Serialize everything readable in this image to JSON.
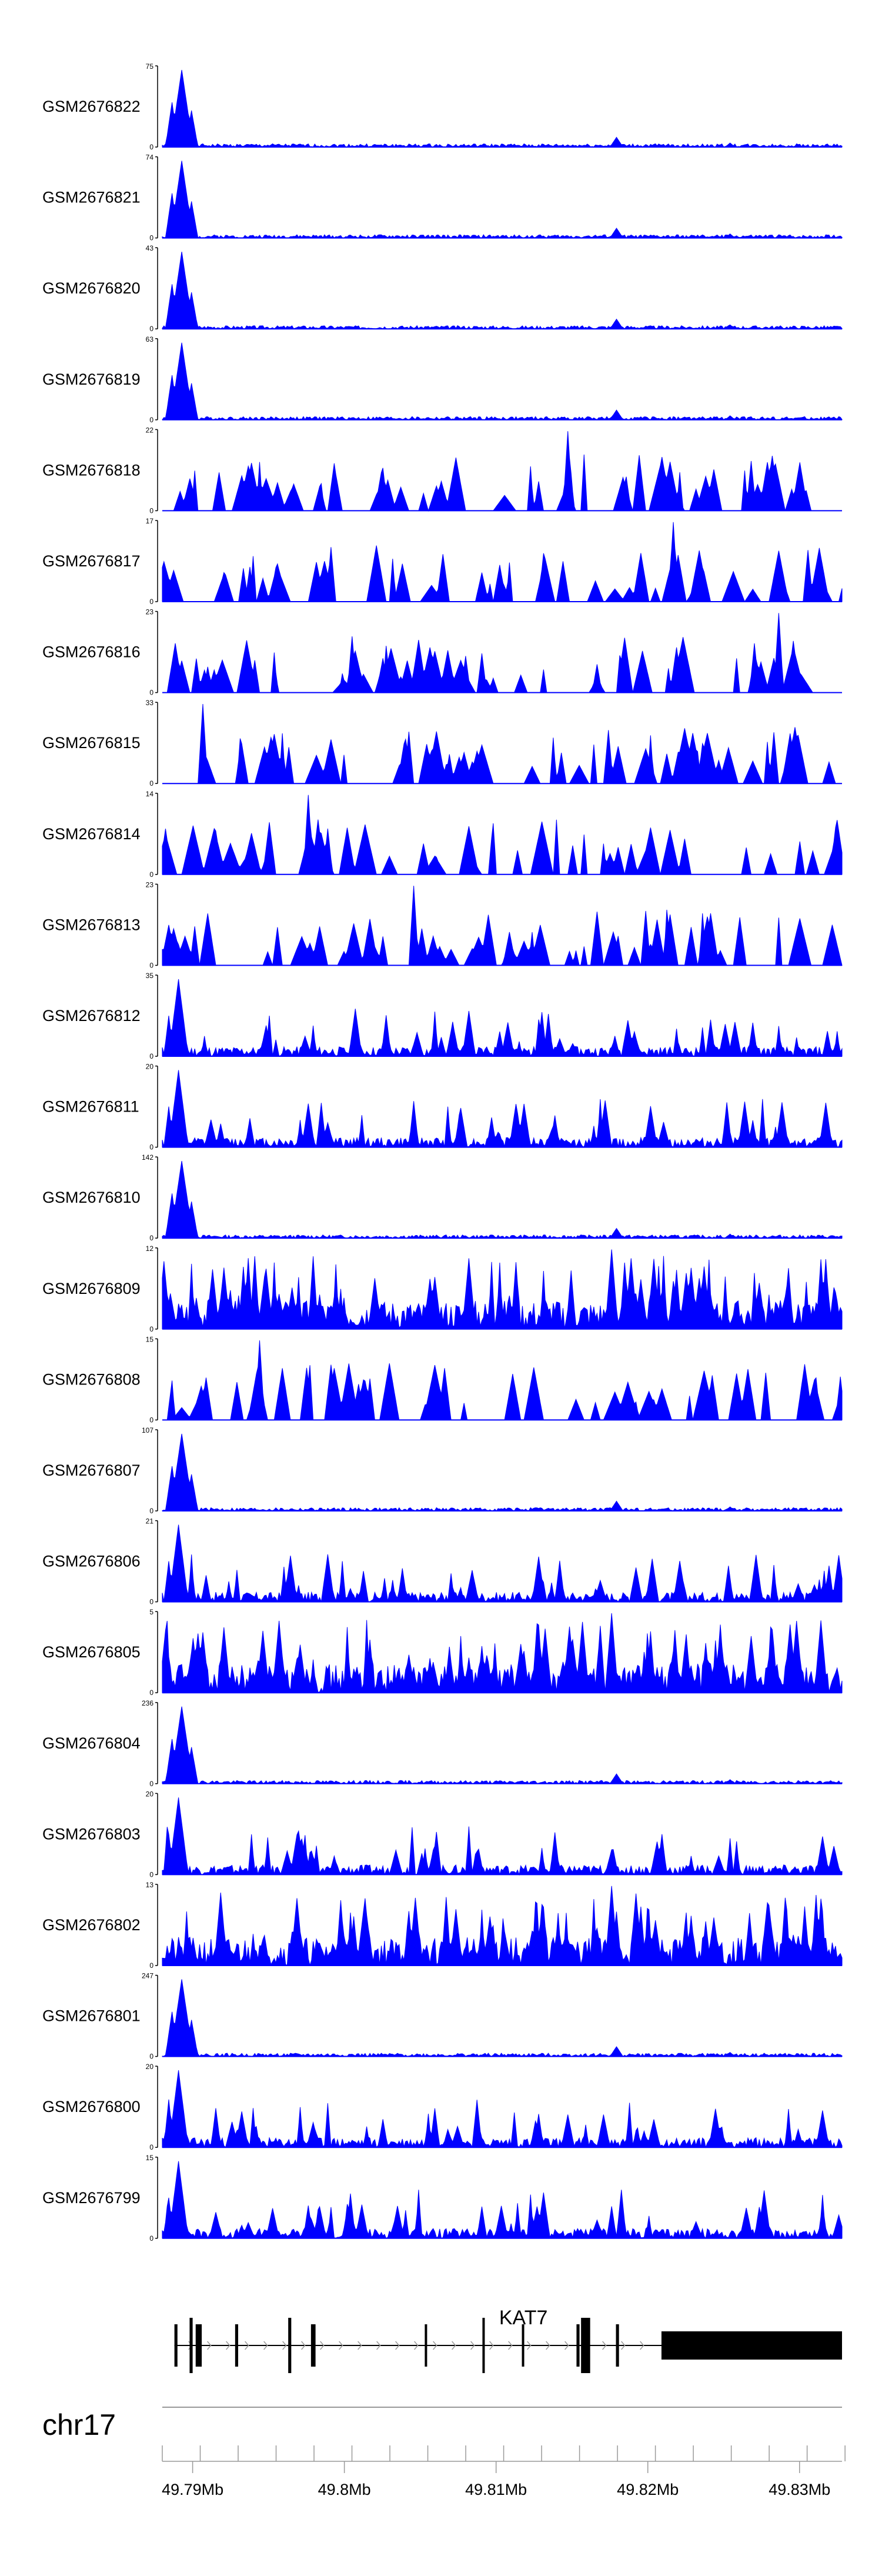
{
  "chart_data": {
    "type": "area",
    "color": "#0000ff",
    "x_range_mb": [
      49.788,
      49.8328
    ],
    "chromosome": "chr17",
    "axis_ticks_mb": [
      49.79,
      49.8,
      49.81,
      49.82,
      49.83
    ],
    "axis_tick_labels": [
      "49.79Mb",
      "49.8Mb",
      "49.81Mb",
      "49.82Mb",
      "49.83Mb"
    ],
    "gene": {
      "name": "KAT7",
      "start_mb": 49.7888,
      "end_mb": 49.8328,
      "exons_mb": [
        [
          49.7888,
          49.789
        ],
        [
          49.7898,
          49.79
        ],
        [
          49.7902,
          49.7906
        ],
        [
          49.7928,
          49.793
        ],
        [
          49.7963,
          49.7965
        ],
        [
          49.7978,
          49.7981
        ],
        [
          49.8053,
          49.8054
        ],
        [
          49.8091,
          49.8092
        ],
        [
          49.8117,
          49.8118
        ],
        [
          49.8153,
          49.8155
        ],
        [
          49.8156,
          49.8162
        ],
        [
          49.8179,
          49.8181
        ],
        [
          49.8209,
          49.8328
        ]
      ]
    },
    "tracks": [
      {
        "name": "GSM2676822",
        "ymax": "75",
        "profile": "peak",
        "seed": 1
      },
      {
        "name": "GSM2676821",
        "ymax": "74",
        "profile": "peak",
        "seed": 2
      },
      {
        "name": "GSM2676820",
        "ymax": "43",
        "profile": "peak",
        "seed": 3
      },
      {
        "name": "GSM2676819",
        "ymax": "63",
        "profile": "peak",
        "seed": 4
      },
      {
        "name": "GSM2676818",
        "ymax": "22",
        "profile": "sparse",
        "seed": 5
      },
      {
        "name": "GSM2676817",
        "ymax": "17",
        "profile": "sparse",
        "seed": 6
      },
      {
        "name": "GSM2676816",
        "ymax": "23",
        "profile": "sparse",
        "seed": 7
      },
      {
        "name": "GSM2676815",
        "ymax": "33",
        "profile": "sparse",
        "seed": 8
      },
      {
        "name": "GSM2676814",
        "ymax": "14",
        "profile": "sparse",
        "seed": 9
      },
      {
        "name": "GSM2676813",
        "ymax": "23",
        "profile": "sparse",
        "seed": 10
      },
      {
        "name": "GSM2676812",
        "ymax": "35",
        "profile": "peakmid",
        "seed": 11
      },
      {
        "name": "GSM2676811",
        "ymax": "20",
        "profile": "peakmid",
        "seed": 12
      },
      {
        "name": "GSM2676810",
        "ymax": "142",
        "profile": "peak",
        "seed": 13
      },
      {
        "name": "GSM2676809",
        "ymax": "12",
        "profile": "dense",
        "seed": 14
      },
      {
        "name": "GSM2676808",
        "ymax": "15",
        "profile": "sparse",
        "seed": 15
      },
      {
        "name": "GSM2676807",
        "ymax": "107",
        "profile": "peak",
        "seed": 16
      },
      {
        "name": "GSM2676806",
        "ymax": "21",
        "profile": "peakmid",
        "seed": 17
      },
      {
        "name": "GSM2676805",
        "ymax": "5",
        "profile": "dense",
        "seed": 18
      },
      {
        "name": "GSM2676804",
        "ymax": "236",
        "profile": "peak",
        "seed": 19
      },
      {
        "name": "GSM2676803",
        "ymax": "20",
        "profile": "peakmid",
        "seed": 20
      },
      {
        "name": "GSM2676802",
        "ymax": "13",
        "profile": "dense",
        "seed": 21
      },
      {
        "name": "GSM2676801",
        "ymax": "247",
        "profile": "peak",
        "seed": 22
      },
      {
        "name": "GSM2676800",
        "ymax": "20",
        "profile": "peakmid",
        "seed": 23
      },
      {
        "name": "GSM2676799",
        "ymax": "15",
        "profile": "peakmid",
        "seed": 24
      }
    ],
    "ymin_label": "0"
  }
}
